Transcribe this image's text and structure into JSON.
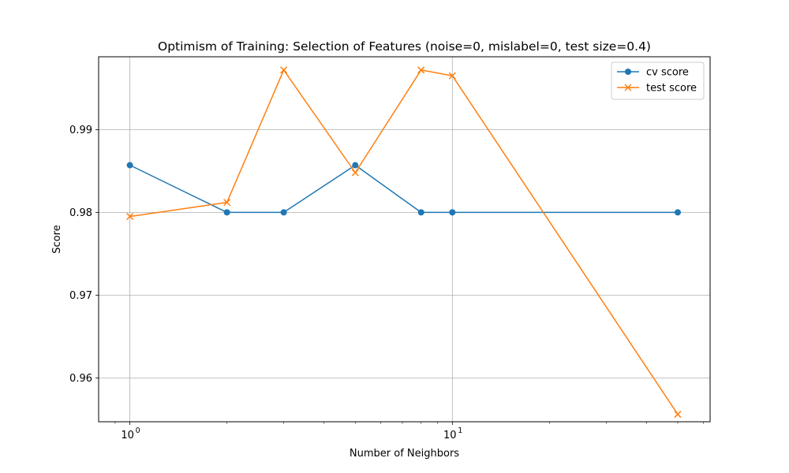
{
  "chart_data": {
    "type": "line",
    "title": "Optimism of Training: Selection of Features (noise=0, mislabel=0, test size=0.4)",
    "xlabel": "Number of Neighbors",
    "ylabel": "Score",
    "xscale": "log",
    "xlim": [
      0.8,
      63
    ],
    "ylim": [
      0.9547,
      0.9988
    ],
    "grid": true,
    "legend_position": "top-right",
    "x_major_ticks": [
      1,
      10
    ],
    "x_major_tick_labels": [
      {
        "base": "10",
        "exp": "0"
      },
      {
        "base": "10",
        "exp": "1"
      }
    ],
    "y_ticks": [
      0.96,
      0.97,
      0.98,
      0.99
    ],
    "y_tick_labels": [
      "0.96",
      "0.97",
      "0.98",
      "0.99"
    ],
    "series": [
      {
        "name": "cv score",
        "color": "#1f77b4",
        "marker": "circle",
        "x": [
          1,
          2,
          3,
          5,
          8,
          10,
          50
        ],
        "y": [
          0.9857,
          0.98,
          0.98,
          0.9857,
          0.98,
          0.98,
          0.98
        ]
      },
      {
        "name": "test score",
        "color": "#ff7f0e",
        "marker": "x",
        "x": [
          1,
          2,
          3,
          5,
          8,
          10,
          50
        ],
        "y": [
          0.9795,
          0.9812,
          0.9972,
          0.9848,
          0.9972,
          0.9965,
          0.9556
        ]
      }
    ]
  }
}
